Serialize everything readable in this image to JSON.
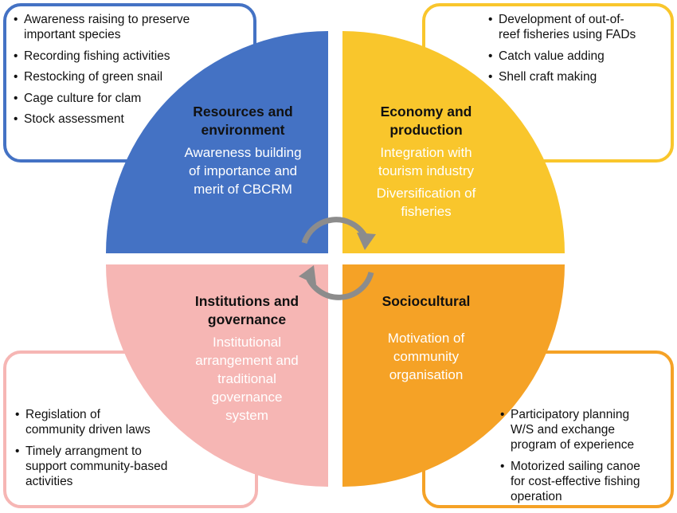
{
  "quadrants": {
    "resources": {
      "title_lines": [
        "Resources and",
        "environment"
      ],
      "sub_lines": [
        "Awareness building",
        "of importance and",
        "merit of CBCRM"
      ],
      "color": "#4472c4",
      "box_items": [
        {
          "lines": [
            "Awareness raising to preserve",
            "important species"
          ]
        },
        {
          "lines": [
            "Recording fishing activities"
          ]
        },
        {
          "lines": [
            "Restocking of green snail"
          ]
        },
        {
          "lines": [
            "Cage culture for clam"
          ]
        },
        {
          "lines": [
            "Stock assessment"
          ]
        }
      ]
    },
    "economy": {
      "title_lines": [
        "Economy and",
        "production"
      ],
      "sub_lines": [
        "Integration with",
        "tourism industry"
      ],
      "sub2_lines": [
        "Diversification of",
        "fisheries"
      ],
      "color": "#f9c62c",
      "box_items": [
        {
          "lines": [
            "Development of out-of-",
            "reef fisheries using FADs"
          ]
        },
        {
          "lines": [
            "Catch value adding"
          ]
        },
        {
          "lines": [
            "Shell craft making"
          ]
        }
      ]
    },
    "institutions": {
      "title_lines": [
        "Institutions and",
        "governance"
      ],
      "sub_lines": [
        "Institutional",
        "arrangement and",
        "traditional",
        "governance",
        "system"
      ],
      "color": "#f6b6b4",
      "box_items": [
        {
          "lines": [
            "Regislation of",
            "community driven laws"
          ]
        },
        {
          "lines": [
            "Timely arrangment to",
            "support community-based",
            "activities"
          ]
        }
      ]
    },
    "sociocultural": {
      "title_lines": [
        "Sociocultural"
      ],
      "sub_lines": [
        "Motivation of",
        "community",
        "organisation"
      ],
      "color": "#f5a226",
      "box_items": [
        {
          "lines": [
            "Participatory planning",
            "W/S and exchange",
            "program of experience"
          ]
        },
        {
          "lines": [
            "Motorized sailing canoe",
            "for cost-effective fishing",
            "operation"
          ]
        }
      ]
    }
  },
  "cycle_arrow_color": "#8c8c8c",
  "cycle_icon": "cycle-arrows-icon"
}
